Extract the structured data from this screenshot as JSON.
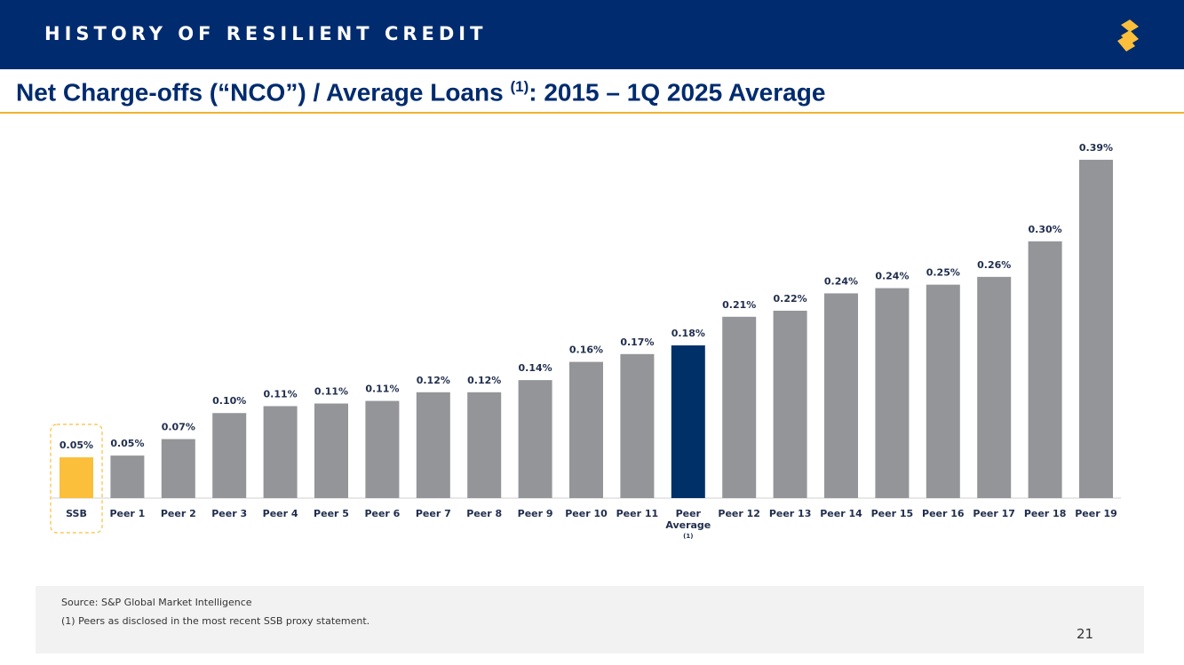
{
  "header": {
    "title": "HISTORY OF RESILIENT CREDIT"
  },
  "chart_data": {
    "type": "bar",
    "title": "Net Charge-offs (“NCO”) / Average Loans",
    "title_superscript": "(1)",
    "title_suffix": ": 2015 – 1Q 2025 Average",
    "categories": [
      "SSB",
      "Peer 1",
      "Peer 2",
      "Peer 3",
      "Peer 4",
      "Peer 5",
      "Peer 6",
      "Peer 7",
      "Peer 8",
      "Peer 9",
      "Peer 10",
      "Peer 11",
      "Peer Average",
      "Peer 12",
      "Peer 13",
      "Peer 14",
      "Peer 15",
      "Peer 16",
      "Peer 17",
      "Peer 18",
      "Peer 19"
    ],
    "category_superscript": {
      "index": 12,
      "text": "(1)"
    },
    "values": [
      0.047,
      0.049,
      0.068,
      0.098,
      0.106,
      0.109,
      0.112,
      0.122,
      0.122,
      0.136,
      0.157,
      0.166,
      0.176,
      0.209,
      0.216,
      0.236,
      0.242,
      0.246,
      0.255,
      0.296,
      0.39
    ],
    "value_labels": [
      "0.05%",
      "0.05%",
      "0.07%",
      "0.10%",
      "0.11%",
      "0.11%",
      "0.11%",
      "0.12%",
      "0.12%",
      "0.14%",
      "0.16%",
      "0.17%",
      "0.18%",
      "0.21%",
      "0.22%",
      "0.24%",
      "0.24%",
      "0.25%",
      "0.26%",
      "0.30%",
      "0.39%"
    ],
    "colors": [
      "#fbbf3c",
      "#939598",
      "#939598",
      "#939598",
      "#939598",
      "#939598",
      "#939598",
      "#939598",
      "#939598",
      "#939598",
      "#939598",
      "#939598",
      "#003068",
      "#939598",
      "#939598",
      "#939598",
      "#939598",
      "#939598",
      "#939598",
      "#939598",
      "#939598"
    ],
    "highlight_index": 0,
    "ylim": [
      0,
      0.41
    ]
  },
  "footer": {
    "source": "Source: S&P Global Market Intelligence",
    "note": "(1)   Peers as disclosed in the most recent SSB proxy statement.",
    "page": "21"
  }
}
